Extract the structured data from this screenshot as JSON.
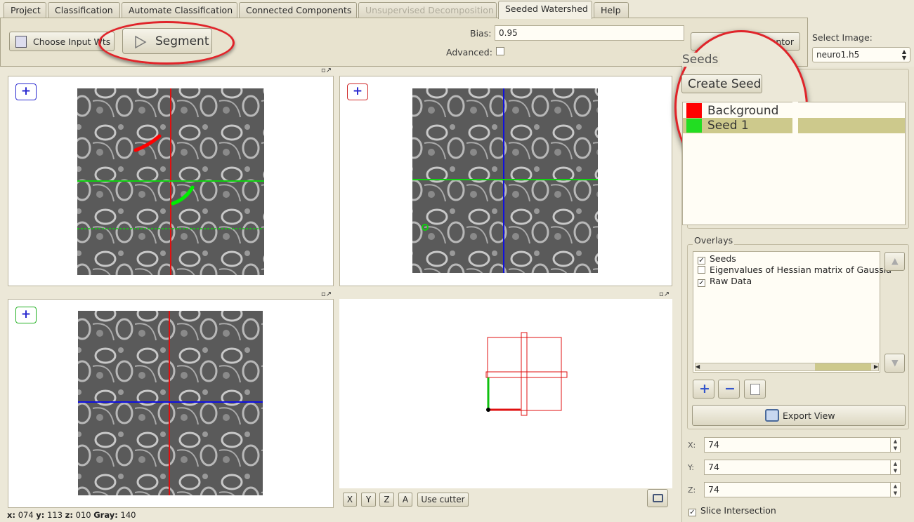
{
  "tabs": [
    {
      "label": "Project",
      "state": "normal"
    },
    {
      "label": "Classification",
      "state": "normal"
    },
    {
      "label": "Automate Classification",
      "state": "normal"
    },
    {
      "label": "Connected Components",
      "state": "normal"
    },
    {
      "label": "Unsupervised Decomposition",
      "state": "disabled"
    },
    {
      "label": "Seeded Watershed",
      "state": "active"
    },
    {
      "label": "Help",
      "state": "normal"
    }
  ],
  "toolbar": {
    "choose_input_label": "Choose Input Wts",
    "segment_label": "Segment",
    "bias_label": "Bias:",
    "bias_value": "0.95",
    "advanced_label": "Advanced:",
    "advanced_checked": false,
    "segmentor_label": "mentor"
  },
  "select_image": {
    "label": "Select Image:",
    "value": "neuro1.h5"
  },
  "seeds": {
    "title": "Seeds",
    "create_label": "Create Seed",
    "items": [
      {
        "label": "Background",
        "color": "#ff0000",
        "selected": false
      },
      {
        "label": "Seed 1",
        "color": "#22dd22",
        "selected": true
      }
    ]
  },
  "overlays": {
    "title": "Overlays",
    "items": [
      {
        "label": "Seeds",
        "checked": true
      },
      {
        "label": "Eigenvalues of Hessian matrix of Gaussia",
        "checked": false
      },
      {
        "label": "Raw Data",
        "checked": true
      }
    ],
    "export_label": "Export View"
  },
  "coords": {
    "x_label": "X:",
    "x_value": "74",
    "y_label": "Y:",
    "y_value": "74",
    "z_label": "Z:",
    "z_value": "74",
    "slice_intersection_label": "Slice Intersection",
    "slice_intersection_checked": true
  },
  "view3d_buttons": {
    "x": "X",
    "y": "Y",
    "z": "Z",
    "a": "A",
    "cutter": "Use cutter"
  },
  "status": {
    "x_label": "x:",
    "x": "074",
    "y_label": "y:",
    "y": "113",
    "z_label": "z:",
    "z": "010",
    "gray_label": "Gray:",
    "gray": "140"
  },
  "colors": {
    "accent_red": "#e0242a",
    "axis_red": "#e01010",
    "axis_green": "#10d010",
    "axis_blue": "#1010e0",
    "selected_row": "#cdc98c"
  }
}
